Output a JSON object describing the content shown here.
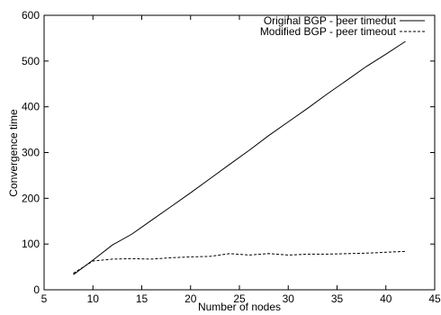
{
  "chart_data": {
    "type": "line",
    "xlabel": "Number of nodes",
    "ylabel": "Convergence time",
    "xlim": [
      5,
      45
    ],
    "ylim": [
      0,
      600
    ],
    "xticks": [
      5,
      10,
      15,
      20,
      25,
      30,
      35,
      40,
      45
    ],
    "yticks": [
      0,
      100,
      200,
      300,
      400,
      500,
      600
    ],
    "grid": false,
    "legend_position": "top-right",
    "series": [
      {
        "name": "Original BGP - peer timeout",
        "style": "solid",
        "color": "#000000",
        "x": [
          8,
          10,
          12,
          14,
          16,
          18,
          20,
          22,
          24,
          26,
          28,
          30,
          32,
          34,
          36,
          38,
          40,
          42
        ],
        "y": [
          33,
          65,
          98,
          122,
          152,
          182,
          212,
          243,
          274,
          305,
          337,
          367,
          397,
          428,
          458,
          488,
          515,
          543
        ]
      },
      {
        "name": "Modified BGP - peer timeout",
        "style": "dashed",
        "color": "#000000",
        "x": [
          8,
          10,
          12,
          14,
          16,
          18,
          20,
          22,
          24,
          26,
          28,
          30,
          32,
          34,
          36,
          38,
          40,
          42
        ],
        "y": [
          36,
          63,
          67,
          68,
          67,
          70,
          72,
          73,
          79,
          76,
          79,
          76,
          78,
          78,
          79,
          80,
          82,
          84
        ]
      }
    ]
  }
}
